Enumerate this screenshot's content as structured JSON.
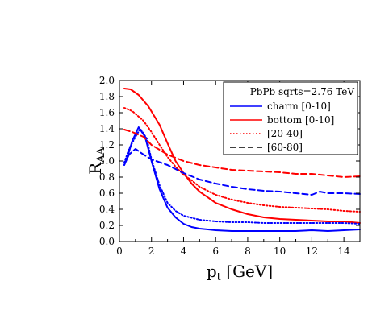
{
  "chart_data": {
    "type": "line",
    "title": "",
    "xlabel": {
      "main": "p",
      "sub": "t",
      "unit": " [GeV]"
    },
    "ylabel": {
      "main": "R",
      "sub": "AA"
    },
    "xlim": [
      0,
      15
    ],
    "ylim": [
      0,
      2.0
    ],
    "x_ticks": [
      {
        "value": 0,
        "label": "0"
      },
      {
        "value": 2,
        "label": "2"
      },
      {
        "value": 4,
        "label": "4"
      },
      {
        "value": 6,
        "label": "6"
      },
      {
        "value": 8,
        "label": "8"
      },
      {
        "value": 10,
        "label": "10"
      },
      {
        "value": 12,
        "label": "12"
      },
      {
        "value": 14,
        "label": "14"
      }
    ],
    "y_ticks": [
      {
        "value": 0.0,
        "label": "0.0"
      },
      {
        "value": 0.2,
        "label": "0.2"
      },
      {
        "value": 0.4,
        "label": "0.4"
      },
      {
        "value": 0.6,
        "label": "0.6"
      },
      {
        "value": 0.8,
        "label": "0.8"
      },
      {
        "value": 1.0,
        "label": "1.0"
      },
      {
        "value": 1.2,
        "label": "1.2"
      },
      {
        "value": 1.4,
        "label": "1.4"
      },
      {
        "value": 1.6,
        "label": "1.6"
      },
      {
        "value": 1.8,
        "label": "1.8"
      },
      {
        "value": 2.0,
        "label": "2.0"
      }
    ],
    "grid": false,
    "legend": {
      "placement": "top-right",
      "title": "PbPb sqrts=2.76 TeV",
      "entries": [
        {
          "label": "charm [0-10]",
          "color": "#0000ff",
          "style": "solid"
        },
        {
          "label": "bottom [0-10]",
          "color": "#ff0000",
          "style": "solid"
        },
        {
          "label": "[20-40]",
          "color": "#ff0000",
          "style": "dotted"
        },
        {
          "label": "[60-80]",
          "color": "#000000",
          "style": "dashed"
        }
      ]
    },
    "series": [
      {
        "id": "charm-0-10",
        "color": "#0000ff",
        "style": "solid",
        "x": [
          0.3,
          0.5,
          0.8,
          1.2,
          1.6,
          2.0,
          2.5,
          3.0,
          3.5,
          4.0,
          4.5,
          5.0,
          6.0,
          7.0,
          8.0,
          9.0,
          10.0,
          11.0,
          12.0,
          13.0,
          14.0,
          15.0
        ],
        "y": [
          0.95,
          1.05,
          1.25,
          1.42,
          1.3,
          1.0,
          0.65,
          0.42,
          0.3,
          0.22,
          0.18,
          0.16,
          0.14,
          0.13,
          0.13,
          0.13,
          0.13,
          0.13,
          0.14,
          0.13,
          0.14,
          0.15
        ]
      },
      {
        "id": "bottom-0-10",
        "color": "#ff0000",
        "style": "solid",
        "x": [
          0.3,
          0.7,
          1.2,
          1.8,
          2.5,
          3.0,
          3.5,
          4.0,
          4.5,
          5.0,
          6.0,
          7.0,
          8.0,
          9.0,
          10.0,
          11.0,
          12.0,
          13.0,
          14.0,
          15.0
        ],
        "y": [
          1.9,
          1.89,
          1.82,
          1.68,
          1.45,
          1.22,
          1.0,
          0.85,
          0.72,
          0.62,
          0.48,
          0.4,
          0.34,
          0.3,
          0.28,
          0.27,
          0.26,
          0.25,
          0.25,
          0.23
        ]
      },
      {
        "id": "charm-20-40",
        "color": "#0000ff",
        "style": "dotted",
        "x": [
          0.3,
          0.6,
          1.0,
          1.3,
          1.7,
          2.0,
          2.5,
          3.0,
          3.5,
          4.0,
          5.0,
          6.0,
          7.0,
          8.0,
          9.0,
          10.0,
          11.0,
          12.0,
          13.0,
          14.0,
          15.0
        ],
        "y": [
          0.98,
          1.15,
          1.3,
          1.4,
          1.28,
          1.02,
          0.7,
          0.48,
          0.38,
          0.32,
          0.27,
          0.25,
          0.24,
          0.24,
          0.23,
          0.23,
          0.23,
          0.23,
          0.23,
          0.23,
          0.22
        ]
      },
      {
        "id": "bottom-20-40",
        "color": "#ff0000",
        "style": "dotted",
        "x": [
          0.3,
          0.8,
          1.5,
          2.0,
          2.5,
          3.0,
          3.5,
          4.0,
          4.5,
          5.0,
          6.0,
          7.0,
          8.0,
          9.0,
          10.0,
          11.0,
          12.0,
          13.0,
          14.0,
          15.0
        ],
        "y": [
          1.66,
          1.62,
          1.5,
          1.36,
          1.2,
          1.05,
          0.93,
          0.83,
          0.76,
          0.68,
          0.58,
          0.52,
          0.48,
          0.45,
          0.43,
          0.42,
          0.41,
          0.4,
          0.38,
          0.37
        ]
      },
      {
        "id": "charm-60-80",
        "color": "#0000ff",
        "style": "dashed",
        "x": [
          0.3,
          0.6,
          1.0,
          1.5,
          2.0,
          3.0,
          4.0,
          5.0,
          6.0,
          7.0,
          8.0,
          9.0,
          10.0,
          11.0,
          12.0,
          12.5,
          13.0,
          14.0,
          15.0
        ],
        "y": [
          0.95,
          1.08,
          1.15,
          1.08,
          1.02,
          0.95,
          0.85,
          0.77,
          0.72,
          0.68,
          0.65,
          0.63,
          0.62,
          0.6,
          0.58,
          0.62,
          0.6,
          0.6,
          0.59
        ]
      },
      {
        "id": "bottom-60-80",
        "color": "#ff0000",
        "style": "dashed",
        "x": [
          0.3,
          0.8,
          1.5,
          2.0,
          3.0,
          4.0,
          5.0,
          6.0,
          7.0,
          8.0,
          9.0,
          10.0,
          11.0,
          12.0,
          13.0,
          14.0,
          15.0
        ],
        "y": [
          1.39,
          1.36,
          1.3,
          1.2,
          1.08,
          1.0,
          0.95,
          0.92,
          0.89,
          0.88,
          0.87,
          0.86,
          0.84,
          0.84,
          0.82,
          0.8,
          0.81
        ]
      }
    ]
  }
}
